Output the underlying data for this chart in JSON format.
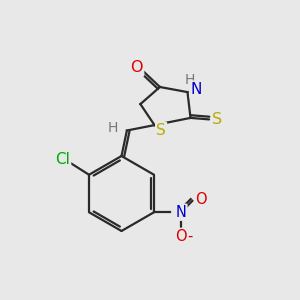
{
  "bg_color": "#e8e8e8",
  "bond_color": "#2a2a2a",
  "atom_colors": {
    "O": "#dd0000",
    "N": "#0000cc",
    "S": "#bbaa00",
    "Cl": "#00aa00",
    "H": "#777777",
    "NO2_N": "#0000cc",
    "NO2_O": "#dd0000"
  },
  "font_size": 10.5,
  "figsize": [
    3.0,
    3.0
  ],
  "dpi": 100,
  "lw": 1.6
}
